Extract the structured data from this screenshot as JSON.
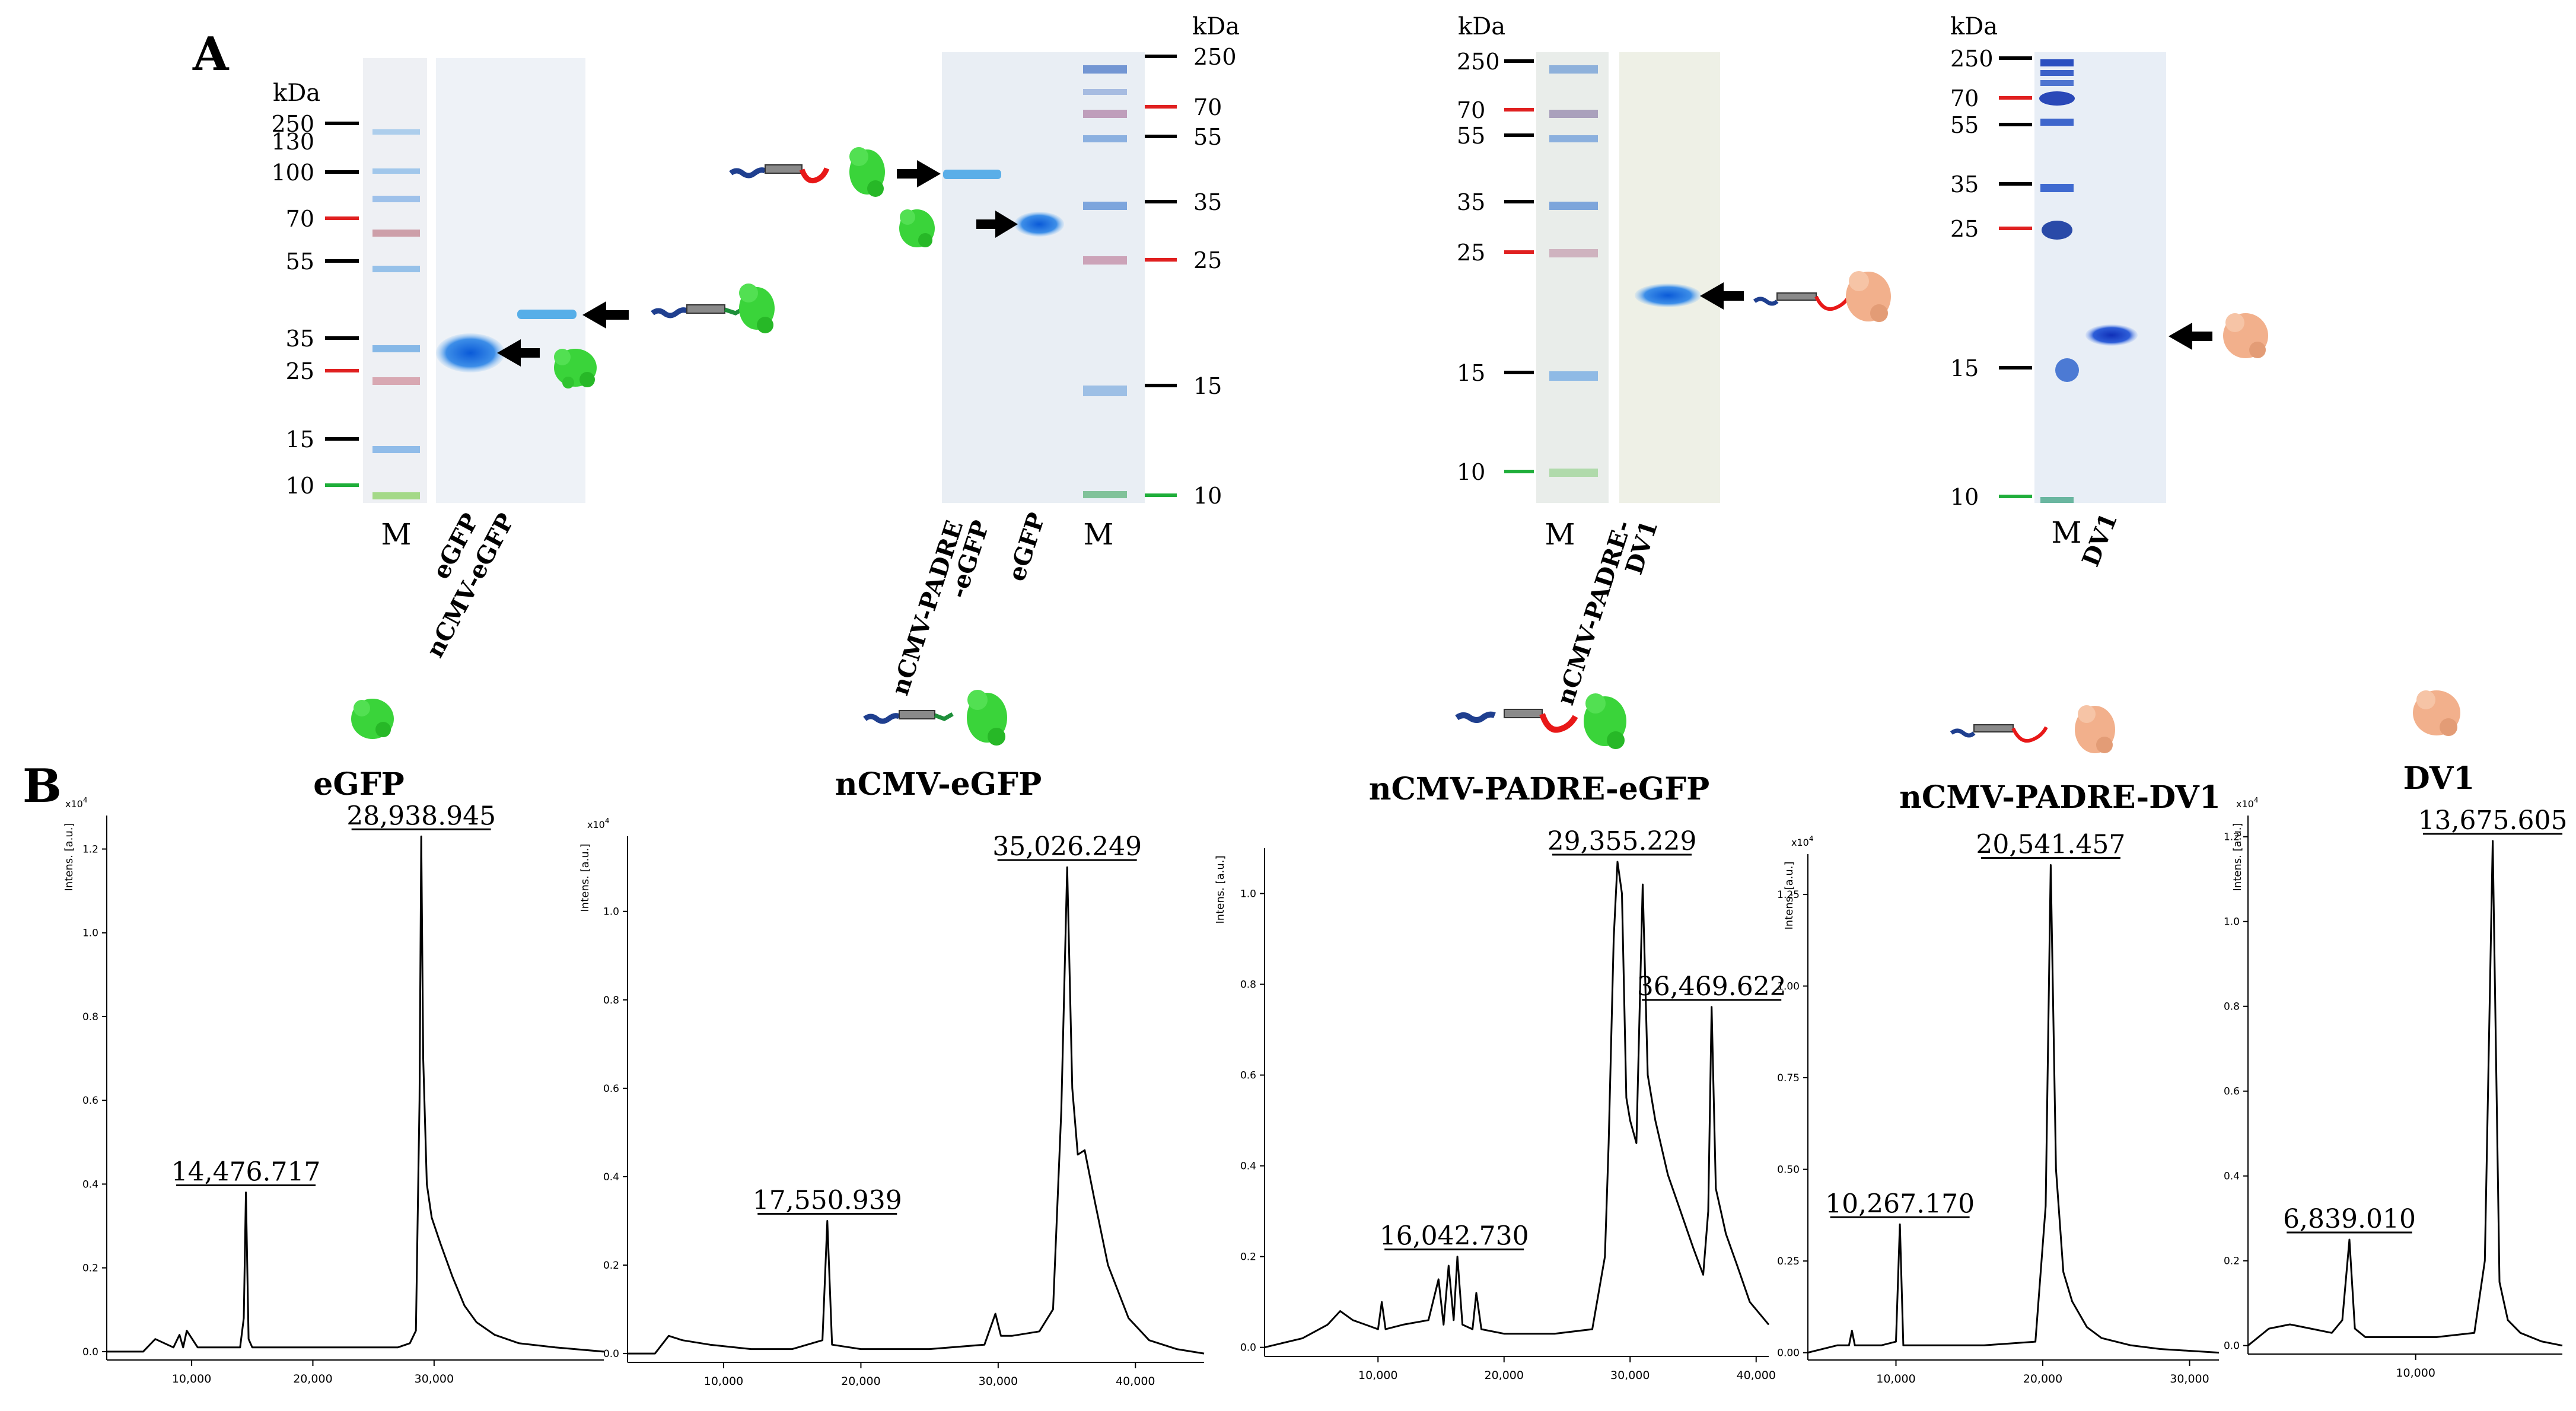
{
  "figure": {
    "panel_a_label": "A",
    "panel_b_label": "B"
  },
  "colors": {
    "marker_black": "#000000",
    "marker_red": "#e02020",
    "marker_green": "#1fae3a",
    "egfp_green": "#3ad43a",
    "dv1_salmon": "#f2b08c",
    "band_blue": "#2a7fe0",
    "peptide_navy": "#1f3f8f",
    "linker_red": "#e81818",
    "linker_green": "#1e8f3a"
  },
  "gels": [
    {
      "id": "gel1",
      "kda": "kDa",
      "markers": [
        {
          "label": "250",
          "color": "black"
        },
        {
          "label": "130",
          "color": "none"
        },
        {
          "label": "100",
          "color": "black"
        },
        {
          "label": "70",
          "color": "red"
        },
        {
          "label": "55",
          "color": "black"
        },
        {
          "label": "35",
          "color": "black"
        },
        {
          "label": "25",
          "color": "red"
        },
        {
          "label": "15",
          "color": "black"
        },
        {
          "label": "10",
          "color": "green"
        }
      ],
      "lanes": [
        "M",
        "eGFP",
        "nCMV-eGFP"
      ]
    },
    {
      "id": "gel2",
      "kda": "kDa",
      "markers": [
        {
          "label": "250",
          "color": "black"
        },
        {
          "label": "70",
          "color": "red"
        },
        {
          "label": "55",
          "color": "black"
        },
        {
          "label": "35",
          "color": "black"
        },
        {
          "label": "25",
          "color": "red"
        },
        {
          "label": "15",
          "color": "black"
        },
        {
          "label": "10",
          "color": "green"
        }
      ],
      "lanes": [
        "nCMV-PADRE\n-eGFP",
        "eGFP",
        "M"
      ]
    },
    {
      "id": "gel3",
      "kda": "kDa",
      "markers": [
        {
          "label": "250",
          "color": "black"
        },
        {
          "label": "70",
          "color": "red"
        },
        {
          "label": "55",
          "color": "black"
        },
        {
          "label": "35",
          "color": "black"
        },
        {
          "label": "25",
          "color": "red"
        },
        {
          "label": "15",
          "color": "black"
        },
        {
          "label": "10",
          "color": "green"
        }
      ],
      "lanes": [
        "M",
        "nCMV-PADRE-\nDV1"
      ]
    },
    {
      "id": "gel4",
      "kda": "kDa",
      "markers": [
        {
          "label": "250",
          "color": "black"
        },
        {
          "label": "70",
          "color": "red"
        },
        {
          "label": "55",
          "color": "black"
        },
        {
          "label": "35",
          "color": "black"
        },
        {
          "label": "25",
          "color": "red"
        },
        {
          "label": "15",
          "color": "black"
        },
        {
          "label": "10",
          "color": "green"
        }
      ],
      "lanes": [
        "M",
        "DV1"
      ]
    }
  ],
  "chart_data": [
    {
      "type": "line",
      "title": "eGFP",
      "ylabel": "Intens. [a.u.]",
      "yexp": "x10",
      "yexp_sup": "4",
      "xlim": [
        3000,
        44000
      ],
      "ylim": [
        -0.02,
        1.28
      ],
      "xticks": [
        10000,
        20000,
        30000
      ],
      "xtick_labels": [
        "10,000",
        "20,000",
        "30,000"
      ],
      "yticks": [
        0.0,
        0.2,
        0.4,
        0.6,
        0.8,
        1.0,
        1.2
      ],
      "ytick_labels": [
        "0.0",
        "0.2",
        "0.4",
        "0.6",
        "0.8",
        "1.0",
        "1.2"
      ],
      "peaks": [
        {
          "x": 14476.717,
          "y": 0.38,
          "label": "14,476.717"
        },
        {
          "x": 28938.945,
          "y": 1.23,
          "label": "28,938.945"
        }
      ],
      "series": [
        {
          "name": "eGFP",
          "x": [
            3000,
            6000,
            7000,
            8500,
            9000,
            9300,
            9600,
            10500,
            12000,
            14000,
            14300,
            14477,
            14700,
            15000,
            17000,
            19000,
            22000,
            25000,
            27000,
            28000,
            28500,
            28800,
            28939,
            29100,
            29400,
            29800,
            30500,
            31500,
            32500,
            33500,
            35000,
            37000,
            40000,
            44000
          ],
          "y": [
            0.0,
            0.0,
            0.03,
            0.01,
            0.04,
            0.01,
            0.05,
            0.01,
            0.01,
            0.01,
            0.08,
            0.38,
            0.03,
            0.01,
            0.01,
            0.01,
            0.01,
            0.01,
            0.01,
            0.02,
            0.05,
            0.6,
            1.23,
            0.7,
            0.4,
            0.32,
            0.26,
            0.18,
            0.11,
            0.07,
            0.04,
            0.02,
            0.01,
            0.0
          ]
        }
      ]
    },
    {
      "type": "line",
      "title": "nCMV-eGFP",
      "ylabel": "Intens. [a.u.]",
      "yexp": "x10",
      "yexp_sup": "4",
      "xlim": [
        3000,
        45000
      ],
      "ylim": [
        -0.02,
        1.17
      ],
      "xticks": [
        10000,
        20000,
        30000,
        40000
      ],
      "xtick_labels": [
        "10,000",
        "20,000",
        "30,000",
        "40,000"
      ],
      "yticks": [
        0.0,
        0.2,
        0.4,
        0.6,
        0.8,
        1.0
      ],
      "ytick_labels": [
        "0.0",
        "0.2",
        "0.4",
        "0.6",
        "0.8",
        "1.0"
      ],
      "peaks": [
        {
          "x": 17550.939,
          "y": 0.3,
          "label": "17,550.939"
        },
        {
          "x": 35026.249,
          "y": 1.1,
          "label": "35,026.249"
        }
      ],
      "series": [
        {
          "name": "nCMV-eGFP",
          "x": [
            3000,
            5000,
            6000,
            7000,
            9000,
            12000,
            15000,
            17200,
            17551,
            17900,
            20000,
            25000,
            29000,
            29800,
            30200,
            31000,
            33000,
            34000,
            34600,
            35026,
            35400,
            35800,
            36300,
            37000,
            38000,
            39500,
            41000,
            43000,
            45000
          ],
          "y": [
            0.0,
            0.0,
            0.04,
            0.03,
            0.02,
            0.01,
            0.01,
            0.03,
            0.3,
            0.02,
            0.01,
            0.01,
            0.02,
            0.09,
            0.04,
            0.04,
            0.05,
            0.1,
            0.55,
            1.1,
            0.6,
            0.45,
            0.46,
            0.35,
            0.2,
            0.08,
            0.03,
            0.01,
            0.0
          ]
        }
      ]
    },
    {
      "type": "line",
      "title": "nCMV-PADRE-eGFP",
      "ylabel": "Intens. [a.u.]",
      "yexp": "",
      "yexp_sup": "",
      "xlim": [
        1000,
        41000
      ],
      "ylim": [
        -0.02,
        1.1
      ],
      "xticks": [
        10000,
        20000,
        30000,
        40000
      ],
      "xtick_labels": [
        "10,000",
        "20,000",
        "30,000",
        "40,000"
      ],
      "yticks": [
        0.0,
        0.2,
        0.4,
        0.6,
        0.8,
        1.0
      ],
      "ytick_labels": [
        "0.0",
        "0.2",
        "0.4",
        "0.6",
        "0.8",
        "1.0"
      ],
      "peaks": [
        {
          "x": 16042.73,
          "y": 0.2,
          "label": "16,042.730"
        },
        {
          "x": 29355.229,
          "y": 1.07,
          "label": "29,355.229"
        },
        {
          "x": 36469.622,
          "y": 0.75,
          "label": "36,469.622"
        }
      ],
      "series": [
        {
          "name": "nCMV-PADRE-eGFP",
          "x": [
            1000,
            4000,
            6000,
            7000,
            8000,
            9000,
            10000,
            10300,
            10600,
            12000,
            14000,
            14800,
            15200,
            15600,
            16000,
            16300,
            16700,
            17500,
            17800,
            18200,
            20000,
            24000,
            27000,
            28000,
            28300,
            28700,
            29000,
            29355,
            29700,
            30000,
            30500,
            31000,
            31400,
            32000,
            33000,
            34000,
            35000,
            35800,
            36200,
            36470,
            36800,
            37200,
            37600,
            38500,
            39500,
            41000
          ],
          "y": [
            0.0,
            0.02,
            0.05,
            0.08,
            0.06,
            0.05,
            0.04,
            0.1,
            0.04,
            0.05,
            0.06,
            0.15,
            0.05,
            0.18,
            0.06,
            0.2,
            0.05,
            0.04,
            0.12,
            0.04,
            0.03,
            0.03,
            0.04,
            0.2,
            0.45,
            0.9,
            1.07,
            1.0,
            0.55,
            0.5,
            0.45,
            1.02,
            0.6,
            0.5,
            0.38,
            0.3,
            0.22,
            0.16,
            0.3,
            0.75,
            0.35,
            0.3,
            0.25,
            0.18,
            0.1,
            0.05
          ]
        }
      ]
    },
    {
      "type": "line",
      "title": "nCMV-PADRE-DV1",
      "ylabel": "Intens. [a.u.]",
      "yexp": "x10",
      "yexp_sup": "4",
      "xlim": [
        4000,
        32000
      ],
      "ylim": [
        -0.02,
        1.36
      ],
      "xticks": [
        10000,
        20000,
        30000
      ],
      "xtick_labels": [
        "10,000",
        "20,000",
        "30,000"
      ],
      "yticks": [
        0.0,
        0.25,
        0.5,
        0.75,
        1.0,
        1.25
      ],
      "ytick_labels": [
        "0.00",
        "0.25",
        "0.50",
        "0.75",
        "1.00",
        "1.25"
      ],
      "peaks": [
        {
          "x": 10267.17,
          "y": 0.35,
          "label": "10,267.170"
        },
        {
          "x": 20541.457,
          "y": 1.33,
          "label": "20,541.457"
        }
      ],
      "series": [
        {
          "name": "nCMV-PADRE-DV1",
          "x": [
            4000,
            6000,
            6800,
            7000,
            7200,
            9000,
            10000,
            10267,
            10500,
            12000,
            16000,
            19500,
            20200,
            20541,
            20900,
            21400,
            22000,
            23000,
            24000,
            26000,
            28000,
            32000
          ],
          "y": [
            0.0,
            0.02,
            0.02,
            0.06,
            0.02,
            0.02,
            0.03,
            0.35,
            0.02,
            0.02,
            0.02,
            0.03,
            0.4,
            1.33,
            0.5,
            0.22,
            0.14,
            0.07,
            0.04,
            0.02,
            0.01,
            0.0
          ]
        }
      ]
    },
    {
      "type": "line",
      "title": "DV1",
      "ylabel": "Intens. [a.u.]",
      "yexp": "x10",
      "yexp_sup": "4",
      "xlim": [
        2000,
        17000
      ],
      "ylim": [
        -0.02,
        1.25
      ],
      "xticks": [
        10000
      ],
      "xtick_labels": [
        "10,000"
      ],
      "yticks": [
        0.0,
        0.2,
        0.4,
        0.6,
        0.8,
        1.0,
        1.2
      ],
      "ytick_labels": [
        "0.0",
        "0.2",
        "0.4",
        "0.6",
        "0.8",
        "1.0",
        "1.2"
      ],
      "peaks": [
        {
          "x": 6839.01,
          "y": 0.25,
          "label": "6,839.010"
        },
        {
          "x": 13675.605,
          "y": 1.19,
          "label": "13,675.605"
        }
      ],
      "series": [
        {
          "name": "DV1",
          "x": [
            2000,
            3000,
            4000,
            5000,
            6000,
            6500,
            6839,
            7100,
            7600,
            9000,
            11000,
            12800,
            13300,
            13676,
            14000,
            14400,
            15000,
            16000,
            17000
          ],
          "y": [
            0.0,
            0.04,
            0.05,
            0.04,
            0.03,
            0.06,
            0.25,
            0.04,
            0.02,
            0.02,
            0.02,
            0.03,
            0.2,
            1.19,
            0.15,
            0.06,
            0.03,
            0.01,
            0.0
          ]
        }
      ]
    }
  ]
}
